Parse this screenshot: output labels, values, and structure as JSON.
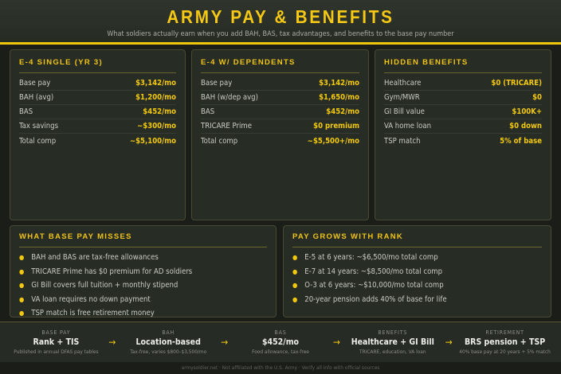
{
  "header": {
    "title": "ARMY PAY & BENEFITS",
    "subtitle": "What soldiers actually earn when you add BAH, BAS, tax advantages, and benefits to the base pay number"
  },
  "cards": [
    {
      "title": "E-4 SINGLE (YR 3)",
      "rows": [
        {
          "label": "Base pay",
          "value": "$3,142/mo"
        },
        {
          "label": "BAH (avg)",
          "value": "$1,200/mo"
        },
        {
          "label": "BAS",
          "value": "$452/mo"
        },
        {
          "label": "Tax savings",
          "value": "~$300/mo"
        },
        {
          "label": "Total comp",
          "value": "~$5,100/mo"
        }
      ]
    },
    {
      "title": "E-4 W/ DEPENDENTS",
      "rows": [
        {
          "label": "Base pay",
          "value": "$3,142/mo"
        },
        {
          "label": "BAH (w/dep avg)",
          "value": "$1,650/mo"
        },
        {
          "label": "BAS",
          "value": "$452/mo"
        },
        {
          "label": "TRICARE Prime",
          "value": "$0 premium"
        },
        {
          "label": "Total comp",
          "value": "~$5,500+/mo"
        }
      ]
    },
    {
      "title": "HIDDEN BENEFITS",
      "rows": [
        {
          "label": "Healthcare",
          "value": "$0 (TRICARE)"
        },
        {
          "label": "Gym/MWR",
          "value": "$0"
        },
        {
          "label": "GI Bill value",
          "value": "$100K+"
        },
        {
          "label": "VA home loan",
          "value": "$0 down"
        },
        {
          "label": "TSP match",
          "value": "5% of base"
        }
      ]
    }
  ],
  "lists": [
    {
      "title": "WHAT BASE PAY MISSES",
      "items": [
        "BAH and BAS are tax-free allowances",
        "TRICARE Prime has $0 premium for AD soldiers",
        "GI Bill covers full tuition + monthly stipend",
        "VA loan requires no down payment",
        "TSP match is free retirement money"
      ]
    },
    {
      "title": "PAY GROWS WITH RANK",
      "items": [
        "E-5 at 6 years: ~$6,500/mo total comp",
        "E-7 at 14 years: ~$8,500/mo total comp",
        "O-3 at 6 years: ~$10,000/mo total comp",
        "20-year pension adds 40% of base for life"
      ]
    }
  ],
  "flow": [
    {
      "kicker": "BASE PAY",
      "main": "Rank + TIS",
      "sub": "Published in annual DFAS pay tables"
    },
    {
      "kicker": "BAH",
      "main": "Location-based",
      "sub": "Tax-free, varies $800–$3,500/mo"
    },
    {
      "kicker": "BAS",
      "main": "$452/mo",
      "sub": "Food allowance, tax-free"
    },
    {
      "kicker": "BENEFITS",
      "main": "Healthcare + GI Bill",
      "sub": "TRICARE, education, VA loan"
    },
    {
      "kicker": "RETIREMENT",
      "main": "BRS pension + TSP",
      "sub": "40% base pay at 20 years + 5% match"
    }
  ],
  "arrow": "→",
  "footer": "armysoldier.net · Not affiliated with the U.S. Army · Verify all info with official sources",
  "colors": {
    "accent": "#f2c80f",
    "background": "#1b1d18",
    "card": "#272c25"
  }
}
